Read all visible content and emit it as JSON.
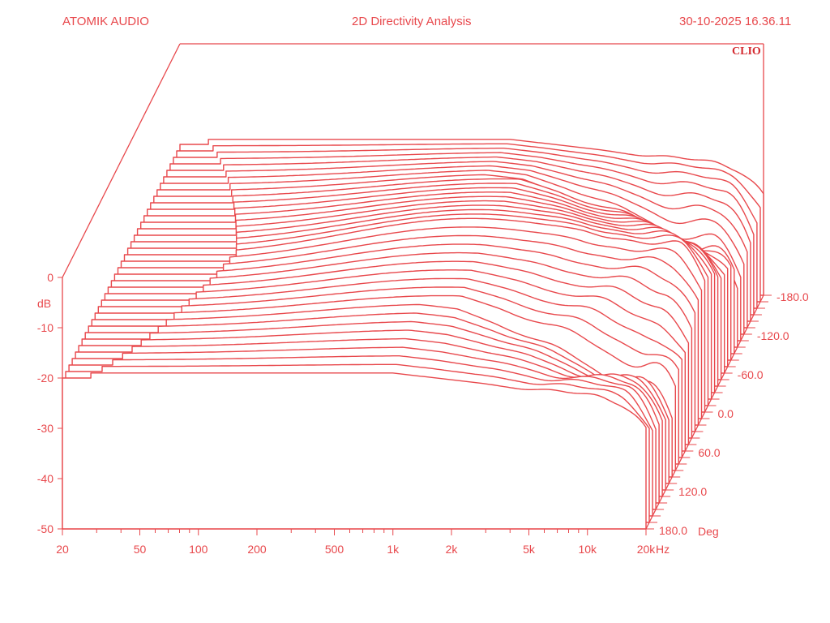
{
  "header": {
    "left": "ATOMIK AUDIO",
    "title": "2D Directivity Analysis",
    "timestamp": "30-10-2025 16.36.11"
  },
  "brand": "CLIO",
  "colors": {
    "trace": "#e8484c",
    "brand": "#d42a30",
    "background": "#ffffff"
  },
  "chart_data": {
    "type": "waterfall-3d",
    "x_axis": {
      "scale": "log",
      "range": [
        20,
        20000
      ],
      "unit": "Hz",
      "tick_labels": [
        "20",
        "50",
        "100",
        "200",
        "500",
        "1k",
        "2k",
        "5k",
        "10k",
        "20k"
      ],
      "tick_values": [
        20,
        50,
        100,
        200,
        500,
        1000,
        2000,
        5000,
        10000,
        20000
      ]
    },
    "y_axis": {
      "unit": "dB",
      "range": [
        -50,
        0
      ],
      "tick_labels": [
        "0",
        "-10",
        "-20",
        "-30",
        "-40",
        "-50"
      ],
      "tick_values": [
        0,
        -10,
        -20,
        -30,
        -40,
        -50
      ]
    },
    "z_axis": {
      "unit": "Deg",
      "range": [
        180,
        -180
      ],
      "tick_labels": [
        "180.0",
        "120.0",
        "60.0",
        "0.0",
        "-60.0",
        "-120.0",
        "-180.0"
      ],
      "tick_values": [
        180,
        120,
        60,
        0,
        -60,
        -120,
        -180
      ],
      "step_deg": 10
    },
    "grid": false,
    "notes_shape": {
      "on_axis_peak_db": -18,
      "on_axis_peak_hz": 1300,
      "low_freq_cutoff_hz": 80,
      "high_freq_rolloff_hz": 20000
    }
  }
}
